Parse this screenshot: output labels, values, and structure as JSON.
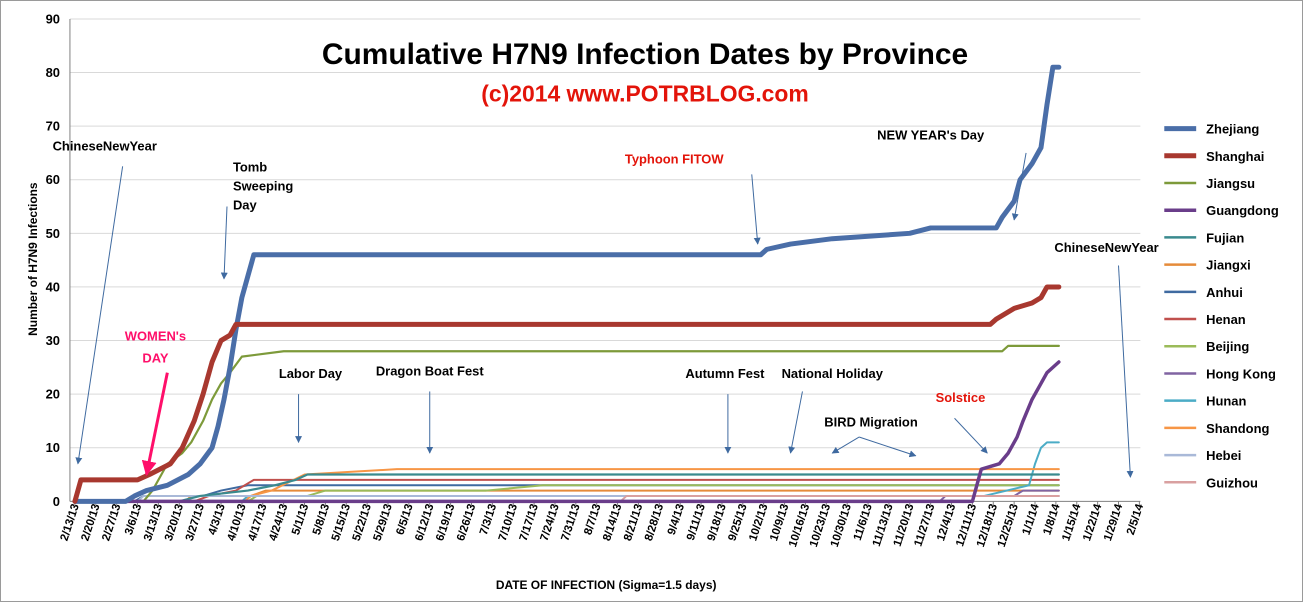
{
  "chart_data": {
    "type": "line",
    "title": "Cumulative H7N9 Infection Dates by Province",
    "subtitle": "(c)2014  www.POTRBLOG.com",
    "xlabel": "DATE OF INFECTION  (Sigma=1.5 days)",
    "ylabel": "Number of H7N9 Infections",
    "ylim": [
      0,
      90
    ],
    "yticks": [
      "0",
      "10",
      "20",
      "30",
      "40",
      "50",
      "60",
      "70",
      "80",
      "90"
    ],
    "xlim": [
      "2013-02-13",
      "2014-02-05"
    ],
    "xticks": [
      "2/13/13",
      "2/20/13",
      "2/27/13",
      "3/6/13",
      "3/13/13",
      "3/20/13",
      "3/27/13",
      "4/3/13",
      "4/10/13",
      "4/17/13",
      "4/24/13",
      "5/1/13",
      "5/8/13",
      "5/15/13",
      "5/22/13",
      "5/29/13",
      "6/5/13",
      "6/12/13",
      "6/19/13",
      "6/26/13",
      "7/3/13",
      "7/10/13",
      "7/17/13",
      "7/24/13",
      "7/31/13",
      "8/7/13",
      "8/14/13",
      "8/21/13",
      "8/28/13",
      "9/4/13",
      "9/11/13",
      "9/18/13",
      "9/25/13",
      "10/2/13",
      "10/9/13",
      "10/16/13",
      "10/23/13",
      "10/30/13",
      "11/6/13",
      "11/13/13",
      "11/20/13",
      "11/27/13",
      "12/4/13",
      "12/11/13",
      "12/18/13",
      "12/25/13",
      "1/1/14",
      "1/8/14",
      "1/15/14",
      "1/22/14",
      "1/29/14",
      "2/5/14"
    ],
    "grid": true,
    "legend_position": "right",
    "series": [
      {
        "name": "Zhejiang",
        "color": "#4a6ea8",
        "width": 5,
        "points": [
          [
            "2013-02-13",
            0
          ],
          [
            "2013-03-02",
            0
          ],
          [
            "2013-03-05",
            1
          ],
          [
            "2013-03-09",
            2
          ],
          [
            "2013-03-16",
            3
          ],
          [
            "2013-03-23",
            5
          ],
          [
            "2013-03-27",
            7
          ],
          [
            "2013-03-31",
            10
          ],
          [
            "2013-04-02",
            14
          ],
          [
            "2013-04-04",
            19
          ],
          [
            "2013-04-06",
            25
          ],
          [
            "2013-04-08",
            32
          ],
          [
            "2013-04-10",
            38
          ],
          [
            "2013-04-12",
            42
          ],
          [
            "2013-04-14",
            46
          ],
          [
            "2013-10-01",
            46
          ],
          [
            "2013-10-03",
            47
          ],
          [
            "2013-10-11",
            48
          ],
          [
            "2013-10-25",
            49
          ],
          [
            "2013-11-20",
            50
          ],
          [
            "2013-11-27",
            51
          ],
          [
            "2013-12-19",
            51
          ],
          [
            "2013-12-21",
            53
          ],
          [
            "2013-12-25",
            56
          ],
          [
            "2013-12-27",
            60
          ],
          [
            "2013-12-31",
            63
          ],
          [
            "2014-01-03",
            66
          ],
          [
            "2014-01-05",
            74
          ],
          [
            "2014-01-07",
            81
          ],
          [
            "2014-01-09",
            81
          ]
        ]
      },
      {
        "name": "Shanghai",
        "color": "#a8382f",
        "width": 5,
        "points": [
          [
            "2013-02-13",
            0
          ],
          [
            "2013-02-15",
            4
          ],
          [
            "2013-03-06",
            4
          ],
          [
            "2013-03-10",
            5
          ],
          [
            "2013-03-17",
            7
          ],
          [
            "2013-03-21",
            10
          ],
          [
            "2013-03-25",
            15
          ],
          [
            "2013-03-28",
            20
          ],
          [
            "2013-03-31",
            26
          ],
          [
            "2013-04-03",
            30
          ],
          [
            "2013-04-06",
            31
          ],
          [
            "2013-04-08",
            33
          ],
          [
            "2013-12-17",
            33
          ],
          [
            "2013-12-19",
            34
          ],
          [
            "2013-12-25",
            36
          ],
          [
            "2013-12-31",
            37
          ],
          [
            "2014-01-03",
            38
          ],
          [
            "2014-01-05",
            40
          ],
          [
            "2014-01-09",
            40
          ]
        ]
      },
      {
        "name": "Jiangsu",
        "color": "#7d9a3a",
        "width": 2.2,
        "points": [
          [
            "2013-02-13",
            0
          ],
          [
            "2013-03-08",
            0
          ],
          [
            "2013-03-11",
            2
          ],
          [
            "2013-03-14",
            5
          ],
          [
            "2013-03-16",
            7
          ],
          [
            "2013-03-21",
            9
          ],
          [
            "2013-03-24",
            11
          ],
          [
            "2013-03-28",
            15
          ],
          [
            "2013-03-31",
            19
          ],
          [
            "2013-04-03",
            22
          ],
          [
            "2013-04-06",
            24
          ],
          [
            "2013-04-10",
            27
          ],
          [
            "2013-04-24",
            28
          ],
          [
            "2013-12-21",
            28
          ],
          [
            "2013-12-23",
            29
          ],
          [
            "2014-01-09",
            29
          ]
        ]
      },
      {
        "name": "Guangdong",
        "color": "#6a3d8a",
        "width": 3.5,
        "points": [
          [
            "2013-02-13",
            0
          ],
          [
            "2013-12-11",
            0
          ],
          [
            "2013-12-14",
            6
          ],
          [
            "2013-12-20",
            7
          ],
          [
            "2013-12-23",
            9
          ],
          [
            "2013-12-26",
            12
          ],
          [
            "2013-12-28",
            15
          ],
          [
            "2013-12-31",
            19
          ],
          [
            "2014-01-03",
            22
          ],
          [
            "2014-01-05",
            24
          ],
          [
            "2014-01-07",
            25
          ],
          [
            "2014-01-09",
            26
          ]
        ]
      },
      {
        "name": "Fujian",
        "color": "#3a8a8e",
        "width": 2.2,
        "points": [
          [
            "2013-02-13",
            0
          ],
          [
            "2013-03-20",
            0
          ],
          [
            "2013-03-27",
            1
          ],
          [
            "2013-04-12",
            2
          ],
          [
            "2013-04-21",
            3
          ],
          [
            "2013-04-28",
            4
          ],
          [
            "2013-05-02",
            5
          ],
          [
            "2013-11-25",
            5
          ],
          [
            "2013-12-04",
            5
          ],
          [
            "2014-01-09",
            5
          ]
        ]
      },
      {
        "name": "Jiangxi",
        "color": "#e58b3a",
        "width": 2,
        "points": [
          [
            "2013-02-13",
            0
          ],
          [
            "2013-03-22",
            0
          ],
          [
            "2013-03-24",
            1
          ],
          [
            "2013-04-13",
            1
          ],
          [
            "2013-04-18",
            2
          ],
          [
            "2013-08-01",
            2
          ],
          [
            "2013-11-01",
            2
          ],
          [
            "2014-01-09",
            2
          ]
        ]
      },
      {
        "name": "Anhui",
        "color": "#3f6aa0",
        "width": 2,
        "points": [
          [
            "2013-02-13",
            0
          ],
          [
            "2013-03-05",
            0
          ],
          [
            "2013-03-08",
            1
          ],
          [
            "2013-03-28",
            1
          ],
          [
            "2013-04-03",
            2
          ],
          [
            "2013-04-12",
            3
          ],
          [
            "2014-01-09",
            3
          ]
        ]
      },
      {
        "name": "Henan",
        "color": "#c0504d",
        "width": 2,
        "points": [
          [
            "2013-02-13",
            0
          ],
          [
            "2013-03-25",
            0
          ],
          [
            "2013-03-30",
            1
          ],
          [
            "2013-04-08",
            2
          ],
          [
            "2013-04-14",
            4
          ],
          [
            "2013-04-28",
            4
          ],
          [
            "2013-10-28",
            4
          ],
          [
            "2014-01-09",
            4
          ]
        ]
      },
      {
        "name": "Beijing",
        "color": "#9bbb59",
        "width": 2,
        "points": [
          [
            "2013-02-13",
            0
          ],
          [
            "2013-04-12",
            0
          ],
          [
            "2013-04-15",
            1
          ],
          [
            "2013-05-02",
            1
          ],
          [
            "2013-05-08",
            2
          ],
          [
            "2013-07-01",
            2
          ],
          [
            "2013-07-20",
            3
          ],
          [
            "2014-01-09",
            3
          ]
        ]
      },
      {
        "name": "Hong Kong",
        "color": "#8064a2",
        "width": 2,
        "points": [
          [
            "2013-02-13",
            0
          ],
          [
            "2013-11-30",
            0
          ],
          [
            "2013-12-02",
            1
          ],
          [
            "2013-12-25",
            1
          ],
          [
            "2013-12-28",
            2
          ],
          [
            "2014-01-09",
            2
          ]
        ]
      },
      {
        "name": "Hunan",
        "color": "#4bacc6",
        "width": 2,
        "points": [
          [
            "2013-02-13",
            0
          ],
          [
            "2013-04-10",
            0
          ],
          [
            "2013-04-12",
            1
          ],
          [
            "2013-09-20",
            1
          ],
          [
            "2013-12-15",
            1
          ],
          [
            "2013-12-30",
            3
          ],
          [
            "2014-01-01",
            7
          ],
          [
            "2014-01-03",
            10
          ],
          [
            "2014-01-05",
            11
          ],
          [
            "2014-01-09",
            11
          ]
        ]
      },
      {
        "name": "Shandong",
        "color": "#f79646",
        "width": 2,
        "points": [
          [
            "2013-02-13",
            0
          ],
          [
            "2013-04-11",
            0
          ],
          [
            "2013-04-13",
            1
          ],
          [
            "2013-04-20",
            2
          ],
          [
            "2013-05-01",
            5
          ],
          [
            "2013-06-01",
            6
          ],
          [
            "2014-01-09",
            6
          ]
        ]
      },
      {
        "name": "Hebei",
        "color": "#a9b9d8",
        "width": 2,
        "points": [
          [
            "2013-02-13",
            0
          ],
          [
            "2013-03-06",
            0
          ],
          [
            "2013-03-08",
            1
          ],
          [
            "2013-07-01",
            1
          ],
          [
            "2013-07-31",
            1
          ],
          [
            "2014-01-09",
            1
          ]
        ]
      },
      {
        "name": "Guizhou",
        "color": "#d9a0a0",
        "width": 2,
        "points": [
          [
            "2013-02-13",
            0
          ],
          [
            "2013-08-15",
            0
          ],
          [
            "2013-08-17",
            1
          ],
          [
            "2014-01-09",
            1
          ]
        ]
      }
    ],
    "annotations": [
      {
        "lines": [
          "ChineseNewYear"
        ],
        "color": "#000000",
        "text_at": [
          "2013-02-23",
          65.5
        ],
        "arrow_from": [
          "2013-03-01",
          62.5
        ],
        "arrow_to": [
          "2013-02-14",
          7
        ]
      },
      {
        "lines": [
          "Tomb",
          "Sweeping",
          "Day"
        ],
        "color": "#000000",
        "text_at": [
          "2013-04-07",
          61.5
        ],
        "arrow_from": [
          "2013-04-05",
          55
        ],
        "arrow_to": [
          "2013-04-04",
          41.5
        ]
      },
      {
        "lines": [
          "WOMEN's",
          "DAY"
        ],
        "color": "#ff0f6a",
        "big": true,
        "text_at": [
          "2013-03-12",
          30
        ],
        "arrow_from": [
          "2013-03-16",
          24
        ],
        "arrow_to": [
          "2013-03-09",
          5
        ]
      },
      {
        "lines": [
          "Labor Day"
        ],
        "color": "#000000",
        "text_at": [
          "2013-05-03",
          23
        ],
        "arrow_from": [
          "2013-04-29",
          20
        ],
        "arrow_to": [
          "2013-04-29",
          11
        ]
      },
      {
        "lines": [
          "Dragon Boat Fest"
        ],
        "color": "#000000",
        "text_at": [
          "2013-06-12",
          23.5
        ],
        "arrow_from": [
          "2013-06-12",
          20.5
        ],
        "arrow_to": [
          "2013-06-12",
          9
        ]
      },
      {
        "lines": [
          "Autumn Fest"
        ],
        "color": "#000000",
        "text_at": [
          "2013-09-19",
          23
        ],
        "arrow_from": [
          "2013-09-20",
          20
        ],
        "arrow_to": [
          "2013-09-20",
          9
        ]
      },
      {
        "lines": [
          "National Holiday"
        ],
        "color": "#000000",
        "text_at": [
          "2013-10-25",
          23
        ],
        "arrow_from": [
          "2013-10-15",
          20.5
        ],
        "arrow_to": [
          "2013-10-11",
          9
        ]
      },
      {
        "lines": [
          "Typhoon FITOW"
        ],
        "color": "#e3140a",
        "text_at": [
          "2013-09-02",
          63
        ],
        "arrow_from": [
          "2013-09-28",
          61
        ],
        "arrow_to": [
          "2013-09-30",
          48
        ]
      },
      {
        "lines": [
          "NEW YEAR's Day"
        ],
        "color": "#000000",
        "text_at": [
          "2013-11-27",
          67.5
        ],
        "arrow_from": [
          "2013-12-29",
          65
        ],
        "arrow_to": [
          "2013-12-25",
          52.5
        ]
      },
      {
        "lines": [
          "ChineseNewYear"
        ],
        "color": "#000000",
        "text_at": [
          "2014-01-25",
          46.5
        ],
        "arrow_from": [
          "2014-01-29",
          44
        ],
        "arrow_to": [
          "2014-02-02",
          4.5
        ]
      },
      {
        "lines": [
          "Solstice"
        ],
        "color": "#e3140a",
        "text_at": [
          "2013-12-07",
          18.5
        ],
        "arrow_from": [
          "2013-12-05",
          15.5
        ],
        "arrow_to": [
          "2013-12-16",
          9
        ]
      },
      {
        "lines": [
          "BIRD Migration"
        ],
        "color": "#000000",
        "text_at": [
          "2013-11-07",
          14
        ],
        "arrow_from": [
          "2013-11-03",
          12
        ],
        "arrow_to": [
          "2013-10-25",
          9
        ],
        "arrow2_to": [
          "2013-11-22",
          8.5
        ]
      }
    ]
  }
}
